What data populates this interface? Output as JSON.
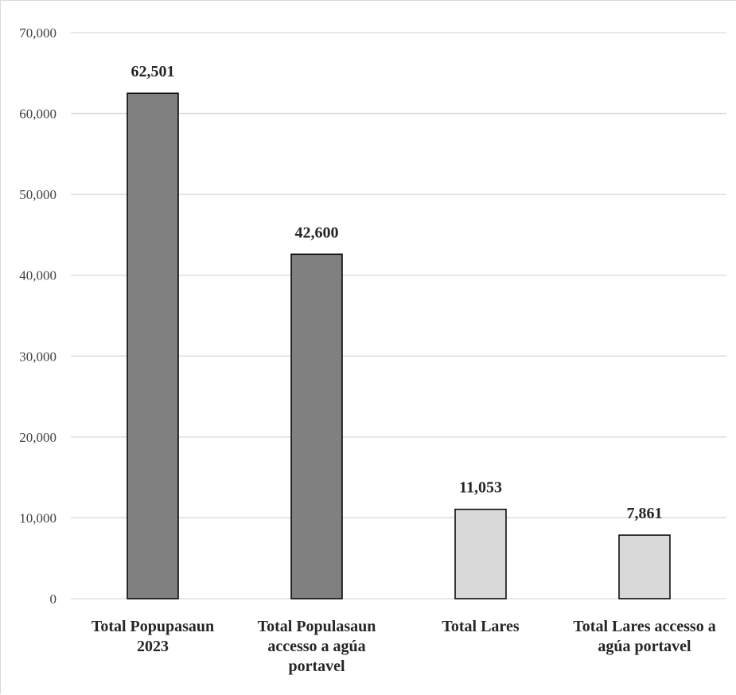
{
  "chart_data": {
    "type": "bar",
    "categories": [
      [
        "Total Popupasaun",
        "2023"
      ],
      [
        "Total Populasaun",
        "accesso a agúa",
        "portavel"
      ],
      [
        "Total Lares"
      ],
      [
        "Total Lares accesso a",
        "agúa portavel"
      ]
    ],
    "values": [
      62501,
      42600,
      11053,
      7861
    ],
    "data_labels": [
      "62,501",
      "42,600",
      "11,053",
      "7,861"
    ],
    "bar_colors": [
      "#808080",
      "#808080",
      "#d9d9d9",
      "#d9d9d9"
    ],
    "ylim": [
      0,
      70000
    ],
    "yticks": [
      0,
      10000,
      20000,
      30000,
      40000,
      50000,
      60000,
      70000
    ],
    "ytick_labels": [
      "0",
      "10,000",
      "20,000",
      "30,000",
      "40,000",
      "50,000",
      "60,000",
      "70,000"
    ],
    "grid": true,
    "legend": "none",
    "gridline_color": "#d9d9d9",
    "bar_edge_color": "#000000"
  }
}
